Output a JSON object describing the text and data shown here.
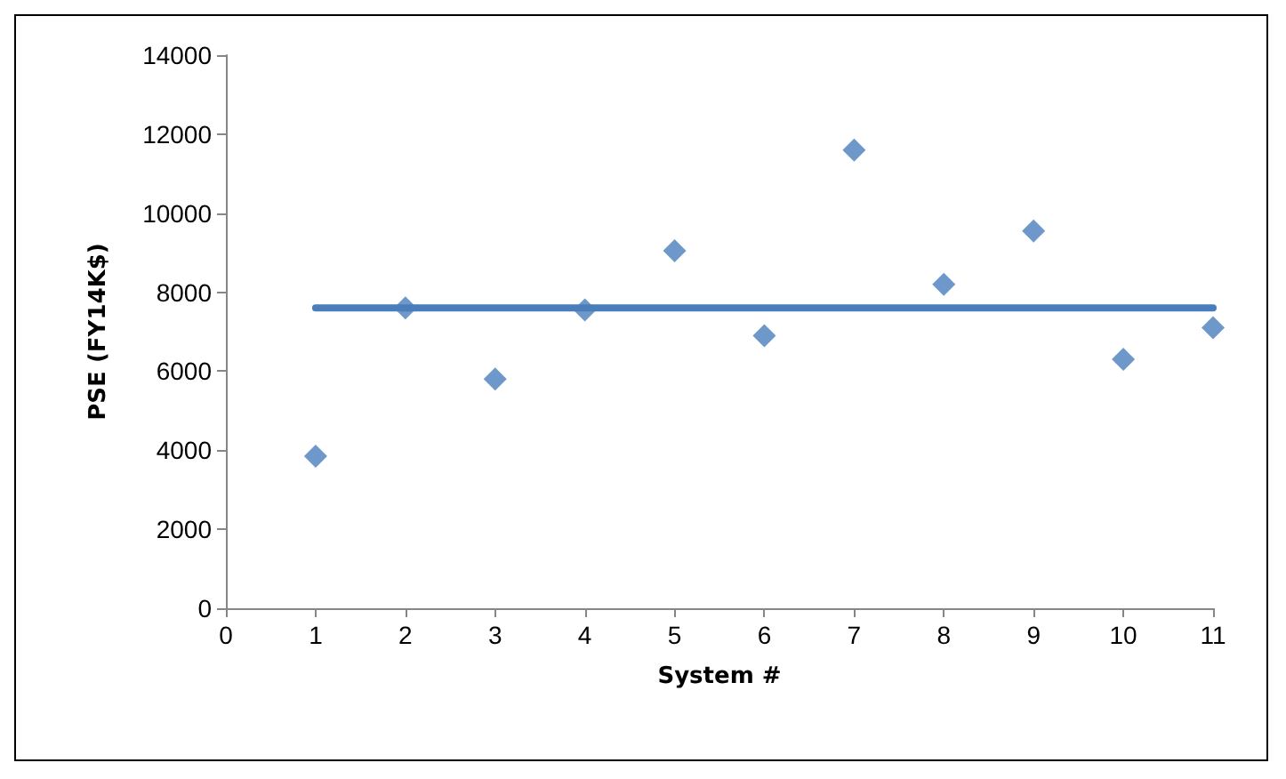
{
  "chart_data": {
    "type": "scatter",
    "xlabel": "System #",
    "ylabel": "PSE (FY14K$)",
    "marker": "diamond",
    "grid": false,
    "xlim": [
      0,
      11
    ],
    "xticks": [
      0,
      1,
      2,
      3,
      4,
      5,
      6,
      7,
      8,
      9,
      10,
      11
    ],
    "ylim": [
      0,
      14000
    ],
    "yticks": [
      0,
      2000,
      4000,
      6000,
      8000,
      10000,
      12000,
      14000
    ],
    "series": [
      {
        "color": "#4a7ebb",
        "x": [
          1,
          2,
          3,
          4,
          5,
          6,
          7,
          8,
          9,
          10,
          11
        ],
        "values": [
          3850,
          7600,
          5800,
          7550,
          9050,
          6900,
          11600,
          8200,
          9550,
          6300,
          7100
        ]
      },
      {
        "type": "line",
        "color": "#4a7ebb",
        "marker": "none",
        "x": [
          1,
          11
        ],
        "values": [
          7600,
          7600
        ]
      }
    ]
  }
}
